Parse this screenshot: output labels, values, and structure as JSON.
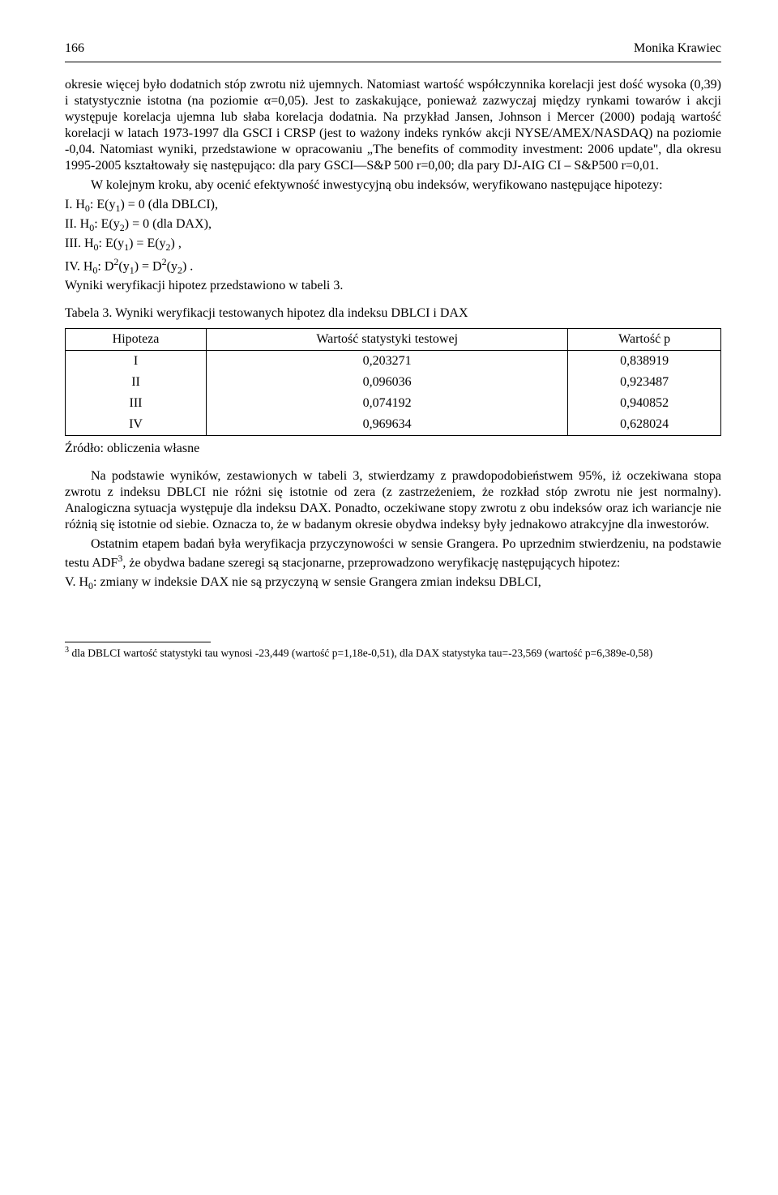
{
  "header": {
    "page_number": "166",
    "author": "Monika Krawiec"
  },
  "body": {
    "p1": "okresie więcej było dodatnich stóp zwrotu niż ujemnych. Natomiast wartość współczynnika korelacji jest dość wysoka (0,39) i statystycznie istotna (na poziomie α=0,05). Jest to zaskakujące, ponieważ zazwyczaj między rynkami towarów i akcji występuje korelacja ujemna lub słaba korelacja dodatnia. Na przykład Jansen, Johnson i Mercer (2000) podają wartość korelacji w latach 1973-1997 dla GSCI i CRSP (jest to ważony indeks rynków akcji NYSE/AMEX/NASDAQ) na poziomie -0,04. Natomiast wyniki, przedstawione w opracowaniu „The benefits of commodity investment: 2006 update\", dla okresu 1995-2005 kształtowały się następująco: dla pary GSCI—S&P 500 r=0,00; dla pary DJ-AIG CI – S&P500 r=0,01.",
    "p2": "W kolejnym kroku, aby ocenić efektywność inwestycyjną obu indeksów, weryfikowano następujące hipotezy:",
    "h1_prefix": "I. H",
    "h1_sub0": "0",
    "h1_mid": ": E(y",
    "h1_sub1": "1",
    "h1_tail": ") = 0 (dla DBLCI),",
    "h2_prefix": "II. H",
    "h2_sub0": "0",
    "h2_mid": ": E(y",
    "h2_sub2": "2",
    "h2_tail": ") = 0 (dla DAX),",
    "h3_prefix": "III. H",
    "h3_sub0": "0",
    "h3_mid1": ": E(y",
    "h3_sub1": "1",
    "h3_mid2": ") = E(y",
    "h3_sub2": "2",
    "h3_tail": ") ,",
    "h4_prefix": "IV. H",
    "h4_sub0": "0",
    "h4_mid1": ": D",
    "h4_sup2a": "2",
    "h4_mid2": "(y",
    "h4_sub1": "1",
    "h4_mid3": ") = D",
    "h4_sup2b": "2",
    "h4_mid4": "(y",
    "h4_sub2": "2",
    "h4_tail": ") .",
    "p3": "Wyniki weryfikacji hipotez przedstawiono w tabeli 3."
  },
  "table3": {
    "caption": "Tabela 3. Wyniki weryfikacji testowanych hipotez dla indeksu DBLCI i DAX",
    "columns": [
      "Hipoteza",
      "Wartość statystyki testowej",
      "Wartość p"
    ],
    "rows": [
      [
        "I",
        "0,203271",
        "0,838919"
      ],
      [
        "II",
        "0,096036",
        "0,923487"
      ],
      [
        "III",
        "0,074192",
        "0,940852"
      ],
      [
        "IV",
        "0,969634",
        "0,628024"
      ]
    ],
    "source": "Źródło: obliczenia własne"
  },
  "body2": {
    "p4": "Na podstawie wyników, zestawionych w tabeli 3, stwierdzamy z prawdopodobieństwem 95%, iż oczekiwana stopa zwrotu z indeksu DBLCI nie różni się istotnie od zera (z zastrzeżeniem, że rozkład stóp zwrotu nie jest normalny). Analogiczna sytuacja występuje dla indeksu DAX. Ponadto, oczekiwane stopy zwrotu z obu indeksów oraz ich wariancje nie różnią się istotnie od siebie. Oznacza to, że w badanym okresie obydwa indeksy były jednakowo atrakcyjne dla inwestorów.",
    "p5_a": "Ostatnim etapem badań była weryfikacja przyczynowości w sensie Grangera. Po uprzednim stwierdzeniu, na podstawie testu ADF",
    "p5_fnref": "3",
    "p5_b": ", że obydwa badane szeregi są stacjonarne, przeprowadzono weryfikację następujących hipotez:",
    "h5_prefix": "V. H",
    "h5_sub0": "0",
    "h5_tail": ": zmiany w indeksie DAX nie są przyczyną w sensie Grangera zmian indeksu DBLCI,"
  },
  "footnote": {
    "marker": "3",
    "text": " dla DBLCI wartość statystyki tau wynosi -23,449 (wartość p=1,18e-0,51), dla DAX statystyka tau=-23,569 (wartość p=6,389e-0,58)"
  }
}
